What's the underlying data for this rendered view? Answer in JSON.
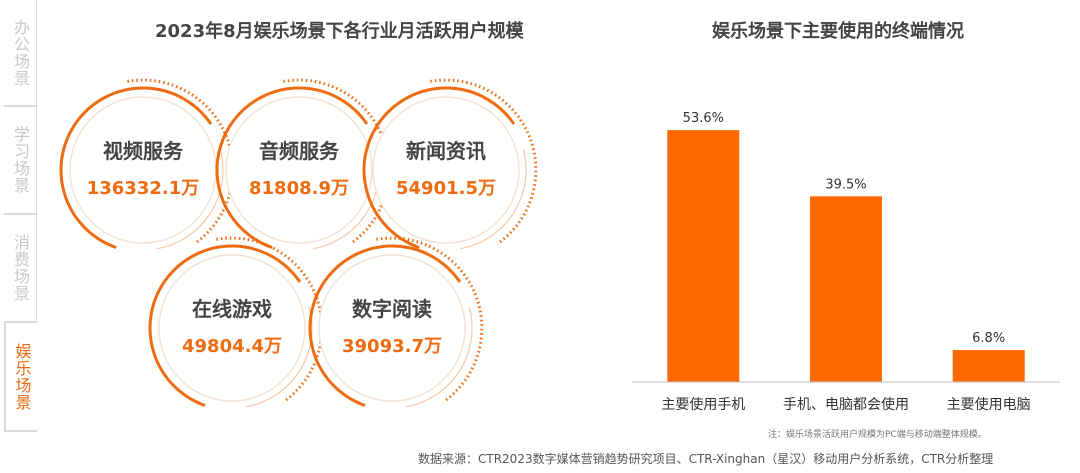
{
  "side_tabs": [
    {
      "label": "办公场景",
      "active": false
    },
    {
      "label": "学习场景",
      "active": false
    },
    {
      "label": "消费场景",
      "active": false
    },
    {
      "label": "娱乐场景",
      "active": true
    }
  ],
  "accent_color": "#ef6b10",
  "left_chart": {
    "title": "2023年8月娱乐场景下各行业月活跃用户规模",
    "items": [
      {
        "name": "视频服务",
        "value": "136332.1万"
      },
      {
        "name": "音频服务",
        "value": "81808.9万"
      },
      {
        "name": "新闻资讯",
        "value": "54901.5万"
      },
      {
        "name": "在线游戏",
        "value": "49804.4万"
      },
      {
        "name": "数字阅读",
        "value": "39093.7万"
      }
    ]
  },
  "chart_data": {
    "type": "bar",
    "title": "娱乐场景下主要使用的终端情况",
    "categories": [
      "主要使用手机",
      "手机、电脑都会使用",
      "主要使用电脑"
    ],
    "values": [
      53.6,
      39.5,
      6.8
    ],
    "value_labels": [
      "53.6%",
      "39.5%",
      "6.8%"
    ],
    "ylim": [
      0,
      60
    ],
    "grid": false,
    "bar_color": "#ff6a00"
  },
  "note": "注：娱乐场景活跃用户规模为PC端与移动端整体规模。",
  "source": "数据来源：CTR2023数字媒体营销趋势研究项目、CTR-Xinghan（星汉）移动用户分析系统，CTR分析整理"
}
